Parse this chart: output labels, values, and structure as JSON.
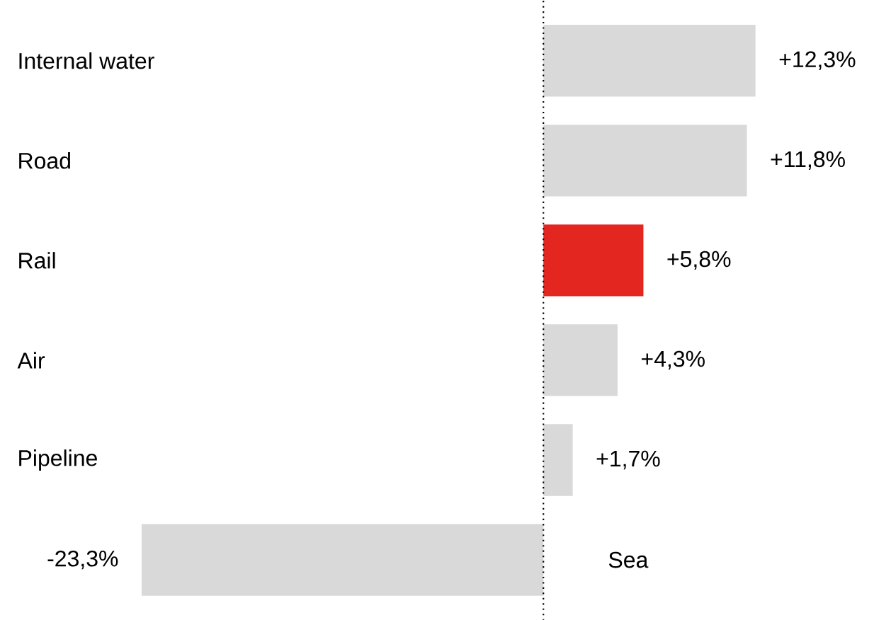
{
  "chart_data": {
    "type": "bar",
    "orientation": "horizontal",
    "categories": [
      "Internal water",
      "Road",
      "Rail",
      "Air",
      "Pipeline",
      "Sea"
    ],
    "values": [
      12.3,
      11.8,
      5.8,
      4.3,
      1.7,
      -23.3
    ],
    "value_labels": [
      "+12,3%",
      "+11,8%",
      "+5,8%",
      "+4,3%",
      "+1,7%",
      "-23,3%"
    ],
    "colors": [
      "#d9d9d9",
      "#d9d9d9",
      "#e3261f",
      "#d9d9d9",
      "#d9d9d9",
      "#d9d9d9"
    ],
    "ref_lines": [
      {
        "axis": "x",
        "value": 0,
        "line_style": "dotted",
        "color": "#000000"
      }
    ]
  }
}
